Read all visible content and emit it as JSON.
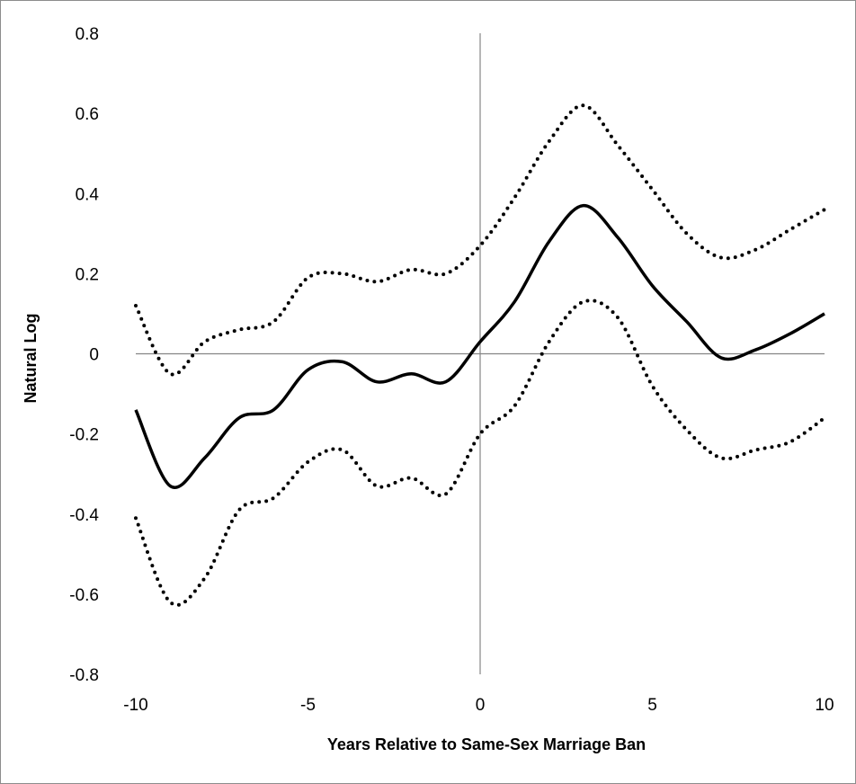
{
  "chart_data": {
    "type": "line",
    "title": "",
    "xlabel": "Years Relative to Same-Sex Marriage Ban",
    "ylabel": "Natural Log",
    "xlim": [
      -10,
      10
    ],
    "ylim": [
      -0.8,
      0.8
    ],
    "xticks": [
      -10,
      -5,
      0,
      5,
      10
    ],
    "yticks": [
      -0.8,
      -0.6,
      -0.4,
      -0.2,
      0,
      0.2,
      0.4,
      0.6,
      0.8
    ],
    "xtick_labels": [
      "-10",
      "-5",
      "0",
      "5",
      "10"
    ],
    "ytick_labels": [
      "-0.8",
      "-0.6",
      "-0.4",
      "-0.2",
      "0",
      "0.2",
      "0.4",
      "0.6",
      "0.8"
    ],
    "grid": false,
    "legend": "none",
    "x": [
      -10,
      -9,
      -8,
      -7,
      -6,
      -5,
      -4,
      -3,
      -2,
      -1,
      0,
      1,
      2,
      3,
      4,
      5,
      6,
      7,
      8,
      9,
      10
    ],
    "series": [
      {
        "style": "solid",
        "color": "#000000",
        "values": [
          -0.14,
          -0.33,
          -0.26,
          -0.16,
          -0.14,
          -0.04,
          -0.02,
          -0.07,
          -0.05,
          -0.07,
          0.03,
          0.13,
          0.28,
          0.37,
          0.29,
          0.17,
          0.08,
          -0.01,
          0.01,
          0.05,
          0.1
        ]
      },
      {
        "style": "dotted",
        "color": "#000000",
        "values": [
          0.12,
          -0.05,
          0.03,
          0.06,
          0.08,
          0.19,
          0.2,
          0.18,
          0.21,
          0.2,
          0.27,
          0.39,
          0.53,
          0.62,
          0.52,
          0.41,
          0.3,
          0.24,
          0.26,
          0.31,
          0.36
        ]
      },
      {
        "style": "dotted",
        "color": "#000000",
        "values": [
          -0.41,
          -0.62,
          -0.56,
          -0.39,
          -0.36,
          -0.27,
          -0.24,
          -0.33,
          -0.31,
          -0.35,
          -0.2,
          -0.13,
          0.03,
          0.13,
          0.09,
          -0.08,
          -0.19,
          -0.26,
          -0.24,
          -0.22,
          -0.16
        ]
      }
    ]
  }
}
